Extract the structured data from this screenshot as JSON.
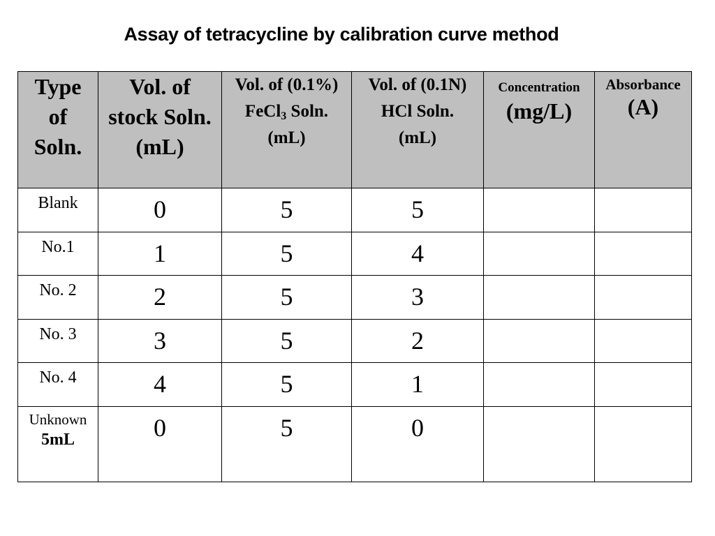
{
  "title": "Assay of tetracycline by calibration curve method",
  "table": {
    "headers": {
      "type": [
        "Type",
        "of",
        "Soln."
      ],
      "stock": [
        "Vol. of",
        "stock Soln.",
        "(mL)"
      ],
      "fecl": {
        "line1": "Vol. of (0.1%)",
        "line2_pre": "FeCl",
        "line2_sub": "3",
        "line2_post": " Soln.",
        "line3": "(mL)"
      },
      "hcl": [
        "Vol. of (0.1N)",
        "HCl Soln.",
        "(mL)"
      ],
      "concentration": {
        "label": "Concentration",
        "unit": "(mg/L)"
      },
      "absorbance": {
        "label": "Absorbance",
        "unit": "(A)"
      }
    },
    "rows": [
      {
        "type": "Blank",
        "stock": "0",
        "fecl": "5",
        "hcl": "5",
        "concentration": "",
        "absorbance": ""
      },
      {
        "type": "No.1",
        "stock": "1",
        "fecl": "5",
        "hcl": "4",
        "concentration": "",
        "absorbance": ""
      },
      {
        "type": "No. 2",
        "stock": "2",
        "fecl": "5",
        "hcl": "3",
        "concentration": "",
        "absorbance": ""
      },
      {
        "type": "No. 3",
        "stock": "3",
        "fecl": "5",
        "hcl": "2",
        "concentration": "",
        "absorbance": ""
      },
      {
        "type": "No. 4",
        "stock": "4",
        "fecl": "5",
        "hcl": "1",
        "concentration": "",
        "absorbance": ""
      }
    ],
    "unknown_row": {
      "type_line1": "Unknown",
      "type_line2": "5mL",
      "stock": "0",
      "fecl": "5",
      "hcl": "0",
      "concentration": "",
      "absorbance": ""
    }
  }
}
